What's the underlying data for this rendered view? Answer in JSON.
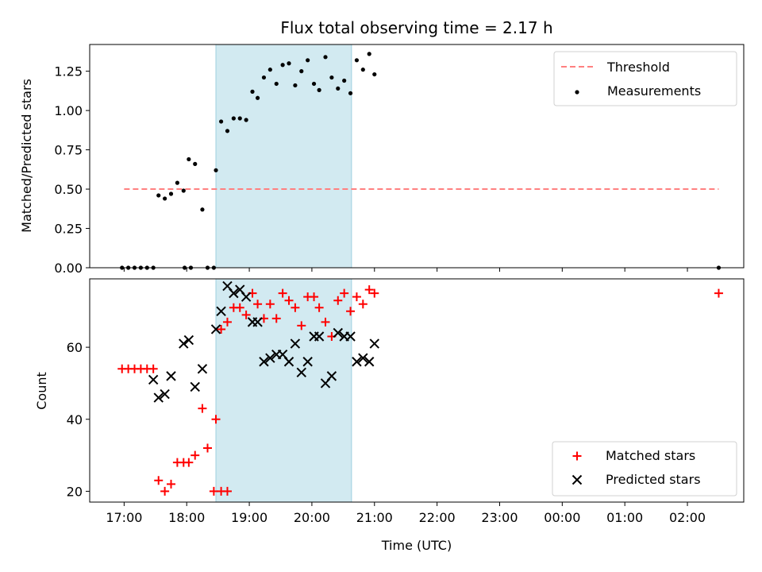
{
  "chart_data": [
    {
      "type": "scatter",
      "title": "Flux total observing time = 2.17 h",
      "ylabel": "Matched/Predicted stars",
      "xlabel": "",
      "ylim": [
        0,
        1.42
      ],
      "yticks": [
        0.0,
        0.25,
        0.5,
        0.75,
        1.0,
        1.25
      ],
      "ytick_labels": [
        "0.00",
        "0.25",
        "0.50",
        "0.75",
        "1.00",
        "1.25"
      ],
      "highlight_span": {
        "start": "18:28",
        "end": "20:38",
        "color": "#add8e6"
      },
      "threshold": {
        "name": "Threshold",
        "value": 0.5,
        "x_start": "17:00",
        "x_end": "02:30",
        "color": "#ff8080",
        "style": "dashed"
      },
      "legend": {
        "placement": "top-right",
        "entries": [
          "Threshold",
          "Measurements"
        ]
      },
      "series": [
        {
          "name": "Measurements",
          "color": "#000000",
          "marker": "dot",
          "points": [
            [
              "16:58",
              0.0
            ],
            [
              "17:04",
              0.0
            ],
            [
              "17:10",
              0.0
            ],
            [
              "17:16",
              0.0
            ],
            [
              "17:22",
              0.0
            ],
            [
              "17:28",
              0.0
            ],
            [
              "17:33",
              0.46
            ],
            [
              "17:39",
              0.44
            ],
            [
              "17:45",
              0.47
            ],
            [
              "17:51",
              0.54
            ],
            [
              "17:58",
              0.0
            ],
            [
              "18:04",
              0.0
            ],
            [
              "17:57",
              0.49
            ],
            [
              "18:02",
              0.69
            ],
            [
              "18:08",
              0.66
            ],
            [
              "18:15",
              0.37
            ],
            [
              "18:20",
              0.0
            ],
            [
              "18:26",
              0.0
            ],
            [
              "18:28",
              0.62
            ],
            [
              "18:33",
              0.93
            ],
            [
              "18:39",
              0.87
            ],
            [
              "18:45",
              0.95
            ],
            [
              "18:51",
              0.95
            ],
            [
              "18:57",
              0.94
            ],
            [
              "19:03",
              1.12
            ],
            [
              "19:08",
              1.08
            ],
            [
              "19:14",
              1.21
            ],
            [
              "19:20",
              1.26
            ],
            [
              "19:26",
              1.17
            ],
            [
              "19:32",
              1.29
            ],
            [
              "19:38",
              1.3
            ],
            [
              "19:44",
              1.16
            ],
            [
              "19:50",
              1.25
            ],
            [
              "19:56",
              1.32
            ],
            [
              "20:02",
              1.17
            ],
            [
              "20:07",
              1.13
            ],
            [
              "20:13",
              1.34
            ],
            [
              "20:19",
              1.21
            ],
            [
              "20:25",
              1.14
            ],
            [
              "20:31",
              1.19
            ],
            [
              "20:37",
              1.11
            ],
            [
              "20:43",
              1.32
            ],
            [
              "20:49",
              1.26
            ],
            [
              "20:55",
              1.36
            ],
            [
              "21:00",
              1.23
            ],
            [
              "02:30",
              0.0
            ]
          ]
        }
      ]
    },
    {
      "type": "scatter",
      "title": "",
      "ylabel": "Count",
      "xlabel": "Time (UTC)",
      "ylim": [
        17,
        79
      ],
      "yticks": [
        20,
        40,
        60
      ],
      "ytick_labels": [
        "20",
        "40",
        "60"
      ],
      "xticks": [
        "17:00",
        "18:00",
        "19:00",
        "20:00",
        "21:00",
        "22:00",
        "23:00",
        "00:00",
        "01:00",
        "02:00"
      ],
      "highlight_span": {
        "start": "18:28",
        "end": "20:38",
        "color": "#add8e6"
      },
      "legend": {
        "placement": "bottom-right",
        "entries": [
          "Matched stars",
          "Predicted stars"
        ]
      },
      "series": [
        {
          "name": "Matched stars",
          "color": "#ff0000",
          "marker": "plus",
          "points": [
            [
              "16:58",
              54
            ],
            [
              "17:04",
              54
            ],
            [
              "17:10",
              54
            ],
            [
              "17:16",
              54
            ],
            [
              "17:22",
              54
            ],
            [
              "17:28",
              54
            ],
            [
              "17:33",
              23
            ],
            [
              "17:39",
              20
            ],
            [
              "17:45",
              22
            ],
            [
              "17:51",
              28
            ],
            [
              "17:57",
              28
            ],
            [
              "18:02",
              28
            ],
            [
              "18:08",
              30
            ],
            [
              "18:15",
              43
            ],
            [
              "18:20",
              32
            ],
            [
              "18:26",
              20
            ],
            [
              "18:33",
              20
            ],
            [
              "18:39",
              20
            ],
            [
              "18:28",
              40
            ],
            [
              "18:33",
              65
            ],
            [
              "18:39",
              67
            ],
            [
              "18:45",
              71
            ],
            [
              "18:51",
              71
            ],
            [
              "18:57",
              69
            ],
            [
              "19:03",
              75
            ],
            [
              "19:08",
              72
            ],
            [
              "19:14",
              68
            ],
            [
              "19:20",
              72
            ],
            [
              "19:26",
              68
            ],
            [
              "19:32",
              75
            ],
            [
              "19:38",
              73
            ],
            [
              "19:44",
              71
            ],
            [
              "19:50",
              66
            ],
            [
              "19:56",
              74
            ],
            [
              "20:02",
              74
            ],
            [
              "20:07",
              71
            ],
            [
              "20:13",
              67
            ],
            [
              "20:19",
              63
            ],
            [
              "20:25",
              73
            ],
            [
              "20:31",
              75
            ],
            [
              "20:37",
              70
            ],
            [
              "20:43",
              74
            ],
            [
              "20:49",
              72
            ],
            [
              "20:55",
              76
            ],
            [
              "21:00",
              75
            ],
            [
              "02:30",
              75
            ]
          ]
        },
        {
          "name": "Predicted stars",
          "color": "#000000",
          "marker": "x",
          "points": [
            [
              "17:28",
              51
            ],
            [
              "17:33",
              46
            ],
            [
              "17:39",
              47
            ],
            [
              "17:45",
              52
            ],
            [
              "17:57",
              61
            ],
            [
              "18:02",
              62
            ],
            [
              "18:08",
              49
            ],
            [
              "18:15",
              54
            ],
            [
              "18:28",
              65
            ],
            [
              "18:33",
              70
            ],
            [
              "18:39",
              77
            ],
            [
              "18:45",
              75
            ],
            [
              "18:51",
              76
            ],
            [
              "18:57",
              74
            ],
            [
              "19:03",
              67
            ],
            [
              "19:08",
              67
            ],
            [
              "19:14",
              56
            ],
            [
              "19:20",
              57
            ],
            [
              "19:26",
              58
            ],
            [
              "19:32",
              58
            ],
            [
              "19:38",
              56
            ],
            [
              "19:44",
              61
            ],
            [
              "19:50",
              53
            ],
            [
              "19:56",
              56
            ],
            [
              "20:02",
              63
            ],
            [
              "20:07",
              63
            ],
            [
              "20:13",
              50
            ],
            [
              "20:19",
              52
            ],
            [
              "20:25",
              64
            ],
            [
              "20:31",
              63
            ],
            [
              "20:37",
              63
            ],
            [
              "20:43",
              56
            ],
            [
              "20:49",
              57
            ],
            [
              "20:55",
              56
            ],
            [
              "21:00",
              61
            ]
          ]
        }
      ]
    }
  ]
}
